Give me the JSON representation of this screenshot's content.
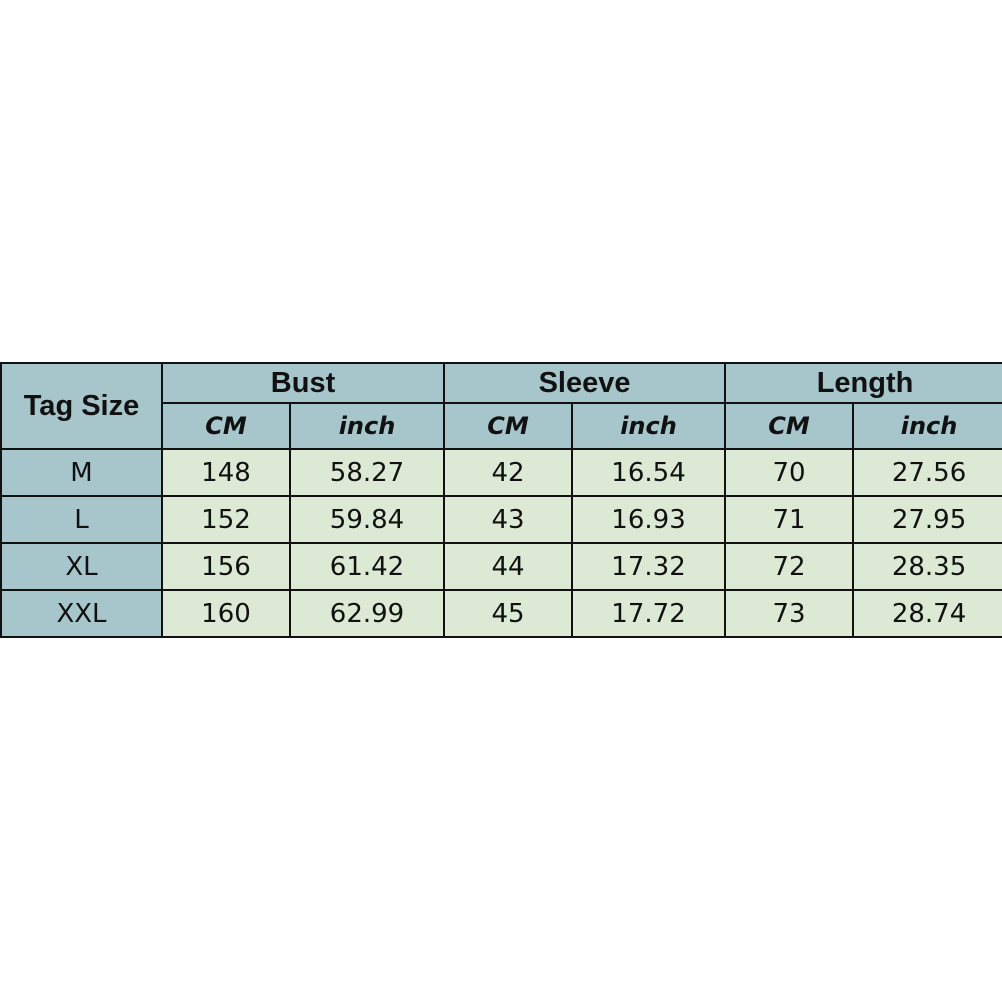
{
  "header": {
    "tag_size": "Tag Size",
    "groups": [
      "Bust",
      "Sleeve",
      "Length"
    ],
    "units": [
      "CM",
      "inch",
      "CM",
      "inch",
      "CM",
      "inch"
    ]
  },
  "rows": [
    {
      "size": "M",
      "values": [
        "148",
        "58.27",
        "42",
        "16.54",
        "70",
        "27.56"
      ]
    },
    {
      "size": "L",
      "values": [
        "152",
        "59.84",
        "43",
        "16.93",
        "71",
        "27.95"
      ]
    },
    {
      "size": "XL",
      "values": [
        "156",
        "61.42",
        "44",
        "17.32",
        "72",
        "28.35"
      ]
    },
    {
      "size": "XXL",
      "values": [
        "160",
        "62.99",
        "45",
        "17.72",
        "73",
        "28.74"
      ]
    }
  ],
  "colors": {
    "header_bg": "#a7c6cb",
    "body_bg": "#dcead5"
  }
}
